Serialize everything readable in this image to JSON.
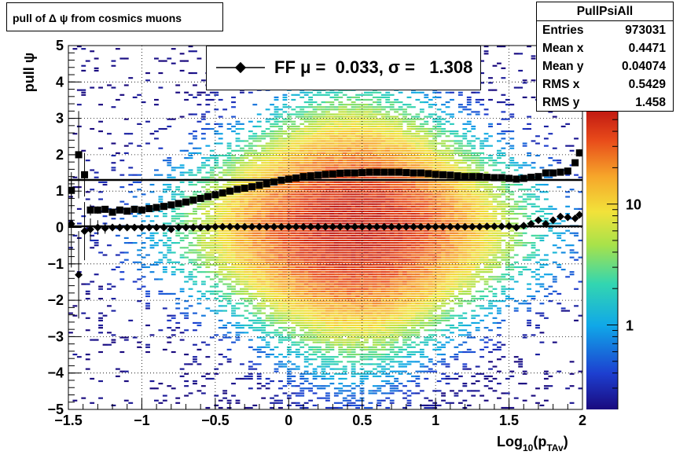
{
  "title": "pull of Δ ψ from cosmics muons",
  "stats": {
    "name": "PullPsiAll",
    "rows": [
      {
        "label": "Entries",
        "value": "973031"
      },
      {
        "label": "Mean x",
        "value": "0.4471"
      },
      {
        "label": "Mean y",
        "value": "0.04074"
      },
      {
        "label": "RMS x",
        "value": "0.5429"
      },
      {
        "label": "RMS y",
        "value": "1.458"
      }
    ]
  },
  "legend": {
    "text": "FF μ =  0.033, σ =   1.308"
  },
  "chart_data": {
    "type": "heatmap",
    "xlabel_main": "Log",
    "xlabel_sub": "10",
    "xlabel_paren": "(p",
    "xlabel_sub2": "TAv",
    "xlabel_close": ")",
    "ylabel": "pull ψ",
    "xlim": [
      -1.5,
      2
    ],
    "ylim": [
      -5,
      5
    ],
    "xticks": [
      "−1.5",
      "−1",
      "−0.5",
      "0",
      "0.5",
      "1",
      "1.5",
      "2"
    ],
    "xtick_values": [
      -1.5,
      -1,
      -0.5,
      0,
      0.5,
      1,
      1.5,
      2
    ],
    "yticks": [
      "−5",
      "−4",
      "−3",
      "−2",
      "−1",
      "0",
      "1",
      "2",
      "3",
      "4",
      "5"
    ],
    "ytick_values": [
      -5,
      -4,
      -3,
      -2,
      -1,
      0,
      1,
      2,
      3,
      4,
      5
    ],
    "zscale": "log",
    "zticks": [
      "1",
      "10"
    ],
    "ztick_values": [
      1,
      10
    ],
    "grid": true,
    "mean_fit_line": 0.033,
    "sigma_fit_line": 1.308,
    "sigma_points": {
      "x": [
        -1.48,
        -1.43,
        -1.39,
        -1.35,
        -1.3,
        -1.25,
        -1.2,
        -1.15,
        -1.1,
        -1.05,
        -1.0,
        -0.95,
        -0.9,
        -0.85,
        -0.8,
        -0.75,
        -0.7,
        -0.65,
        -0.6,
        -0.55,
        -0.5,
        -0.45,
        -0.4,
        -0.35,
        -0.3,
        -0.25,
        -0.2,
        -0.15,
        -0.1,
        -0.05,
        0.0,
        0.05,
        0.1,
        0.15,
        0.2,
        0.25,
        0.3,
        0.35,
        0.4,
        0.45,
        0.5,
        0.55,
        0.6,
        0.65,
        0.7,
        0.75,
        0.8,
        0.85,
        0.9,
        0.95,
        1.0,
        1.05,
        1.1,
        1.15,
        1.2,
        1.25,
        1.3,
        1.35,
        1.4,
        1.45,
        1.5,
        1.55,
        1.6,
        1.65,
        1.7,
        1.75,
        1.8,
        1.85,
        1.9,
        1.95,
        1.98
      ],
      "y": [
        1.02,
        2.0,
        1.45,
        0.48,
        0.48,
        0.5,
        0.42,
        0.48,
        0.45,
        0.5,
        0.48,
        0.52,
        0.55,
        0.58,
        0.62,
        0.66,
        0.7,
        0.75,
        0.8,
        0.85,
        0.9,
        0.95,
        1.0,
        1.05,
        1.08,
        1.12,
        1.16,
        1.2,
        1.25,
        1.3,
        1.33,
        1.36,
        1.4,
        1.42,
        1.44,
        1.46,
        1.47,
        1.49,
        1.5,
        1.5,
        1.51,
        1.52,
        1.52,
        1.52,
        1.52,
        1.52,
        1.51,
        1.5,
        1.5,
        1.48,
        1.46,
        1.45,
        1.44,
        1.42,
        1.4,
        1.4,
        1.4,
        1.38,
        1.37,
        1.37,
        1.35,
        1.33,
        1.35,
        1.38,
        1.4,
        1.5,
        1.5,
        1.52,
        1.55,
        1.78,
        2.05
      ],
      "err": [
        0.5,
        1.2,
        0.6,
        0.15,
        0.1,
        0.08,
        0.07,
        0.06,
        0.05,
        0.05,
        0.04,
        0.04,
        0.03,
        0.03,
        0.03,
        0.02,
        0.02,
        0.02,
        0.02,
        0.02,
        0.02,
        0.01,
        0.01,
        0.01,
        0.01,
        0.01,
        0.01,
        0.01,
        0.01,
        0.01,
        0.01,
        0.01,
        0.01,
        0.01,
        0.01,
        0.01,
        0.01,
        0.01,
        0.01,
        0.01,
        0.01,
        0.01,
        0.01,
        0.01,
        0.01,
        0.01,
        0.01,
        0.01,
        0.01,
        0.01,
        0.01,
        0.01,
        0.01,
        0.01,
        0.02,
        0.02,
        0.02,
        0.02,
        0.02,
        0.02,
        0.02,
        0.03,
        0.03,
        0.03,
        0.04,
        0.04,
        0.05,
        0.05,
        0.06,
        0.08,
        0.1
      ]
    },
    "mean_points": {
      "x": [
        -1.48,
        -1.43,
        -1.39,
        -1.35,
        -1.3,
        -1.25,
        -1.2,
        -1.15,
        -1.1,
        -1.05,
        -1.0,
        -0.95,
        -0.9,
        -0.85,
        -0.8,
        -0.75,
        -0.7,
        -0.65,
        -0.6,
        -0.55,
        -0.5,
        -0.45,
        -0.4,
        -0.35,
        -0.3,
        -0.25,
        -0.2,
        -0.15,
        -0.1,
        -0.05,
        0.0,
        0.05,
        0.1,
        0.15,
        0.2,
        0.25,
        0.3,
        0.35,
        0.4,
        0.45,
        0.5,
        0.55,
        0.6,
        0.65,
        0.7,
        0.75,
        0.8,
        0.85,
        0.9,
        0.95,
        1.0,
        1.05,
        1.1,
        1.15,
        1.2,
        1.25,
        1.3,
        1.35,
        1.4,
        1.45,
        1.5,
        1.55,
        1.6,
        1.65,
        1.7,
        1.75,
        1.8,
        1.85,
        1.9,
        1.95,
        1.98
      ],
      "y": [
        0.1,
        -1.3,
        -0.1,
        -0.05,
        0.0,
        -0.02,
        0.0,
        0.0,
        0.0,
        0.0,
        0.0,
        0.0,
        0.0,
        0.0,
        -0.05,
        0.0,
        0.0,
        0.0,
        0.0,
        0.0,
        0.02,
        0.02,
        0.02,
        0.02,
        0.02,
        0.02,
        0.02,
        0.02,
        0.02,
        0.02,
        0.02,
        0.02,
        0.02,
        0.02,
        0.02,
        0.02,
        0.02,
        0.02,
        0.02,
        0.02,
        0.02,
        0.02,
        0.02,
        0.02,
        0.02,
        0.02,
        0.02,
        0.02,
        0.02,
        0.02,
        0.02,
        0.02,
        0.02,
        0.02,
        0.02,
        0.02,
        0.02,
        0.03,
        0.03,
        0.03,
        0.04,
        0.0,
        0.05,
        0.1,
        0.2,
        0.1,
        0.2,
        0.3,
        0.28,
        0.25,
        0.35
      ],
      "err": [
        1.2,
        1.2,
        0.8,
        0.3,
        0.2,
        0.15,
        0.1,
        0.08,
        0.07,
        0.06,
        0.05,
        0.05,
        0.04,
        0.03,
        0.03,
        0.02,
        0.02,
        0.02,
        0.02,
        0.01,
        0.01,
        0.01,
        0.01,
        0.01,
        0.01,
        0.01,
        0.01,
        0.01,
        0.01,
        0.01,
        0.01,
        0.01,
        0.01,
        0.01,
        0.01,
        0.01,
        0.01,
        0.01,
        0.01,
        0.01,
        0.01,
        0.01,
        0.01,
        0.01,
        0.01,
        0.01,
        0.01,
        0.01,
        0.01,
        0.01,
        0.01,
        0.01,
        0.01,
        0.01,
        0.02,
        0.02,
        0.02,
        0.02,
        0.02,
        0.02,
        0.02,
        0.03,
        0.03,
        0.03,
        0.04,
        0.04,
        0.05,
        0.05,
        0.06,
        0.08,
        0.1
      ]
    }
  }
}
